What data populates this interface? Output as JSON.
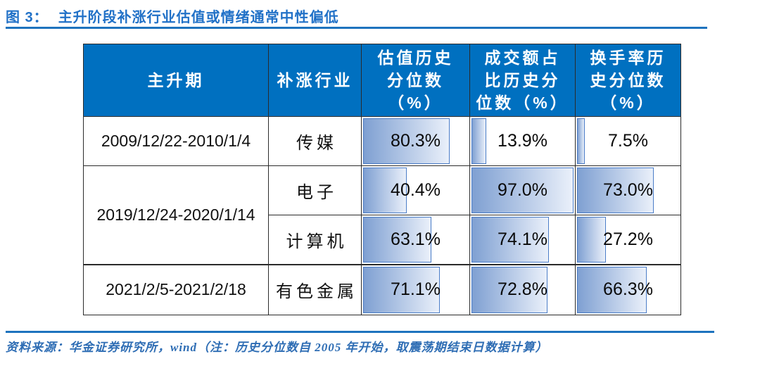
{
  "title": {
    "prefix": "图 3：",
    "text": "主升阶段补涨行业估值或情绪通常中性偏低"
  },
  "table": {
    "headers": [
      "主升期",
      "补涨行业",
      "估值历史\n分位数\n（%）",
      "成交额占\n比历史分\n位数（%）",
      "换手率历\n史分位数\n（%）"
    ],
    "rows": [
      {
        "period": "2009/12/22-2010/1/4",
        "industry": "传媒",
        "cells": [
          {
            "label": "80.3%",
            "value": 80.3
          },
          {
            "label": "13.9%",
            "value": 13.9
          },
          {
            "label": "7.5%",
            "value": 7.5
          }
        ]
      },
      {
        "period": "2019/12/24-2020/1/14",
        "industry": "电子",
        "cells": [
          {
            "label": "40.4%",
            "value": 40.4
          },
          {
            "label": "97.0%",
            "value": 97.0
          },
          {
            "label": "73.0%",
            "value": 73.0
          }
        ]
      },
      {
        "industry": "计算机",
        "cells": [
          {
            "label": "63.1%",
            "value": 63.1
          },
          {
            "label": "74.1%",
            "value": 74.1
          },
          {
            "label": "27.2%",
            "value": 27.2
          }
        ]
      },
      {
        "period": "2021/2/5-2021/2/18",
        "industry": "有色金属",
        "cells": [
          {
            "label": "71.1%",
            "value": 71.1
          },
          {
            "label": "72.8%",
            "value": 72.8
          },
          {
            "label": "66.3%",
            "value": 66.3
          }
        ]
      }
    ]
  },
  "chart_data": {
    "type": "table",
    "title": "图 3：主升阶段补涨行业估值或情绪通常中性偏低",
    "columns": [
      "主升期",
      "补涨行业",
      "估值历史分位数（%）",
      "成交额占比历史分位数（%）",
      "换手率历史分位数（%）"
    ],
    "rows": [
      [
        "2009/12/22-2010/1/4",
        "传媒",
        80.3,
        13.9,
        7.5
      ],
      [
        "2019/12/24-2020/1/14",
        "电子",
        40.4,
        97.0,
        73.0
      ],
      [
        "2019/12/24-2020/1/14",
        "计算机",
        63.1,
        74.1,
        27.2
      ],
      [
        "2021/2/5-2021/2/18",
        "有色金属",
        71.1,
        72.8,
        66.3
      ]
    ],
    "bar_scale": [
      0,
      100
    ],
    "note": "单元格内蓝色渐变数据条长度与数值成正比"
  },
  "footer": {
    "text": "资料来源：华金证券研究所，wind（注：历史分位数自 2005 年开始，取震荡期结束日数据计算）"
  },
  "colors": {
    "header_bg": "#0070C0",
    "bar_gradient_start": "#7FA0D2",
    "bar_gradient_end": "#EAF0FA",
    "bar_border": "#4A7CC7",
    "accent_blue": "#1E73BE",
    "title_blue": "#2171C7",
    "footnote_blue": "#2E6DB4",
    "table_border": "#2B2B2B"
  }
}
